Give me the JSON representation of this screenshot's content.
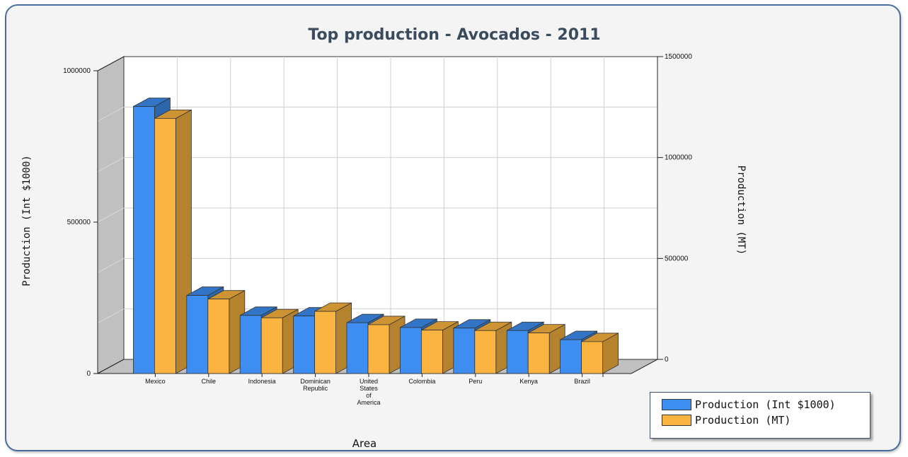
{
  "chart_data": {
    "type": "bar",
    "title": "Top production - Avocados - 2011",
    "xlabel": "Area",
    "ylabel_left": "Production (Int $1000)",
    "ylabel_right": "Production (MT)",
    "categories": [
      "Mexico",
      "Chile",
      "Indonesia",
      "Dominican Republic",
      "United States of America",
      "Colombia",
      "Peru",
      "Kenya",
      "Brazil"
    ],
    "category_lines": [
      [
        "Mexico"
      ],
      [
        "Chile"
      ],
      [
        "Indonesia"
      ],
      [
        "Dominican",
        "Republic"
      ],
      [
        "United",
        "States",
        "of",
        "America"
      ],
      [
        "Colombia"
      ],
      [
        "Peru"
      ],
      [
        "Kenya"
      ],
      [
        "Brazil"
      ]
    ],
    "left_axis": {
      "min": 0,
      "max": 1000000,
      "ticks": [
        0,
        500000,
        1000000
      ]
    },
    "right_axis": {
      "min": 0,
      "max": 1500000,
      "ticks": [
        0,
        500000,
        1000000,
        1500000
      ]
    },
    "series": [
      {
        "name": "Production (Int $1000)",
        "axis": "left",
        "color": "#3d8ef0",
        "values": [
          882000,
          258000,
          192000,
          190000,
          168000,
          152000,
          150000,
          142000,
          112000
        ]
      },
      {
        "name": "Production (MT)",
        "axis": "right",
        "color": "#fbb43f",
        "values": [
          1264000,
          369000,
          276000,
          308000,
          242000,
          215000,
          213000,
          201000,
          158000
        ]
      }
    ],
    "legend_position": "bottom-right",
    "grid": true
  }
}
